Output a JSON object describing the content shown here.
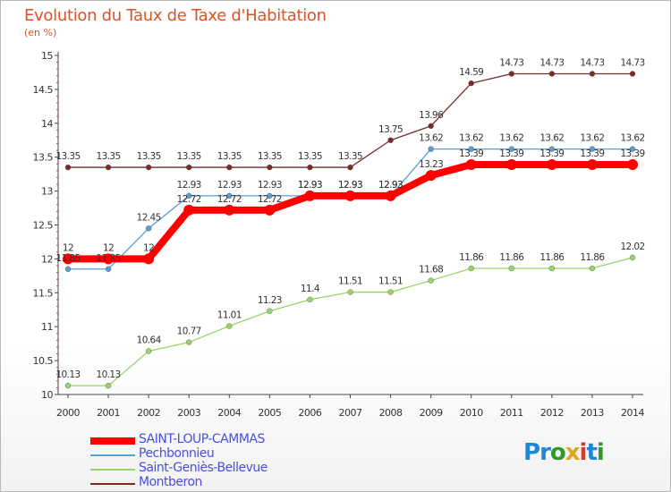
{
  "title": "Evolution du Taux de Taxe d'Habitation",
  "subtitle": "(en %)",
  "brand": {
    "letters": [
      {
        "ch": "P",
        "color": "#1e88d8"
      },
      {
        "ch": "r",
        "color": "#1e88d8"
      },
      {
        "ch": "o",
        "color": "#2e9a2e"
      },
      {
        "ch": "x",
        "color": "#e8a21e"
      },
      {
        "ch": "i",
        "color": "#d83a2a"
      },
      {
        "ch": "t",
        "color": "#1e88d8"
      },
      {
        "ch": "i",
        "color": "#2e9a2e"
      }
    ]
  },
  "chart_data": {
    "type": "line",
    "x": [
      "2000",
      "2001",
      "2002",
      "2003",
      "2004",
      "2005",
      "2006",
      "2007",
      "2008",
      "2009",
      "2010",
      "2011",
      "2012",
      "2013",
      "2014"
    ],
    "ylim": [
      10,
      15
    ],
    "yticks": [
      "10",
      "10.5",
      "11",
      "11.5",
      "12",
      "12.5",
      "13",
      "13.5",
      "14",
      "14.5",
      "15"
    ],
    "grid": false,
    "legend_position": "bottom-left",
    "series": [
      {
        "name": "SAINT-LOUP-CAMMAS",
        "color": "#ff0000",
        "width": 8,
        "marker": 6,
        "values": [
          12,
          12,
          12,
          12.72,
          12.72,
          12.72,
          12.93,
          12.93,
          12.93,
          13.23,
          13.39,
          13.39,
          13.39,
          13.39,
          13.39
        ],
        "labels": [
          "12",
          "12",
          "12",
          "12.72",
          "12.72",
          "12.72",
          "12.93",
          "12.93",
          "12.93",
          "13.23",
          "13.39",
          "13.39",
          "13.39",
          "13.39",
          "13.39"
        ]
      },
      {
        "name": "Pechbonnieu",
        "color": "#5a9fd4",
        "width": 1.3,
        "marker": 3,
        "values": [
          11.85,
          11.85,
          12.45,
          12.93,
          12.93,
          12.93,
          12.93,
          12.93,
          12.93,
          13.62,
          13.62,
          13.62,
          13.62,
          13.62,
          13.62
        ],
        "labels": [
          "11.85",
          "11.85",
          "12.45",
          "12.93",
          "12.93",
          "12.93",
          "12.93",
          "12.93",
          "12.93",
          "13.62",
          "13.62",
          "13.62",
          "13.62",
          "13.62",
          "13.62"
        ]
      },
      {
        "name": "Saint-Geniès-Bellevue",
        "color": "#9ad36a",
        "width": 1.3,
        "marker": 3,
        "values": [
          10.13,
          10.13,
          10.64,
          10.77,
          11.01,
          11.23,
          11.4,
          11.51,
          11.51,
          11.68,
          11.86,
          11.86,
          11.86,
          11.86,
          12.02
        ],
        "labels": [
          "10.13",
          "10.13",
          "10.64",
          "10.77",
          "11.01",
          "11.23",
          "11.4",
          "11.51",
          "11.51",
          "11.68",
          "11.86",
          "11.86",
          "11.86",
          "11.86",
          "12.02"
        ]
      },
      {
        "name": "Montberon",
        "color": "#7a2a2a",
        "width": 1.3,
        "marker": 3,
        "values": [
          13.35,
          13.35,
          13.35,
          13.35,
          13.35,
          13.35,
          13.35,
          13.35,
          13.75,
          13.96,
          14.59,
          14.73,
          14.73,
          14.73,
          14.73
        ],
        "labels": [
          "13.35",
          "13.35",
          "13.35",
          "13.35",
          "13.35",
          "13.35",
          "13.35",
          "13.35",
          "13.75",
          "13.96",
          "14.59",
          "14.73",
          "14.73",
          "14.73",
          "14.73"
        ]
      }
    ]
  }
}
